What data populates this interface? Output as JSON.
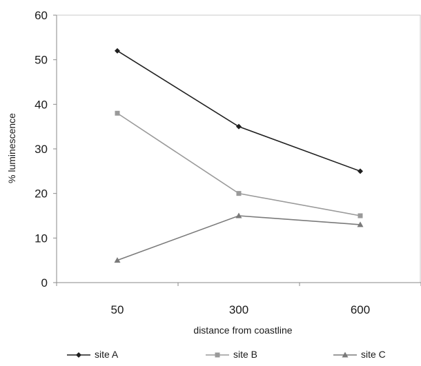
{
  "chart_data": {
    "type": "line",
    "title": "",
    "xlabel": "distance from coastline",
    "ylabel": "% luminescence",
    "categories": [
      "50",
      "300",
      "600"
    ],
    "ylim": [
      0,
      60
    ],
    "yticks": [
      "0",
      "10",
      "20",
      "30",
      "40",
      "50",
      "60"
    ],
    "grid": false,
    "legend_position": "bottom",
    "series": [
      {
        "name": "site A",
        "values": [
          52,
          35,
          25
        ],
        "color": "#1f1f1f",
        "marker": "diamond"
      },
      {
        "name": "site B",
        "values": [
          38,
          20,
          15
        ],
        "color": "#9a9a9a",
        "marker": "square"
      },
      {
        "name": "site C",
        "values": [
          5,
          15,
          13
        ],
        "color": "#7a7a7a",
        "marker": "triangle"
      }
    ]
  }
}
